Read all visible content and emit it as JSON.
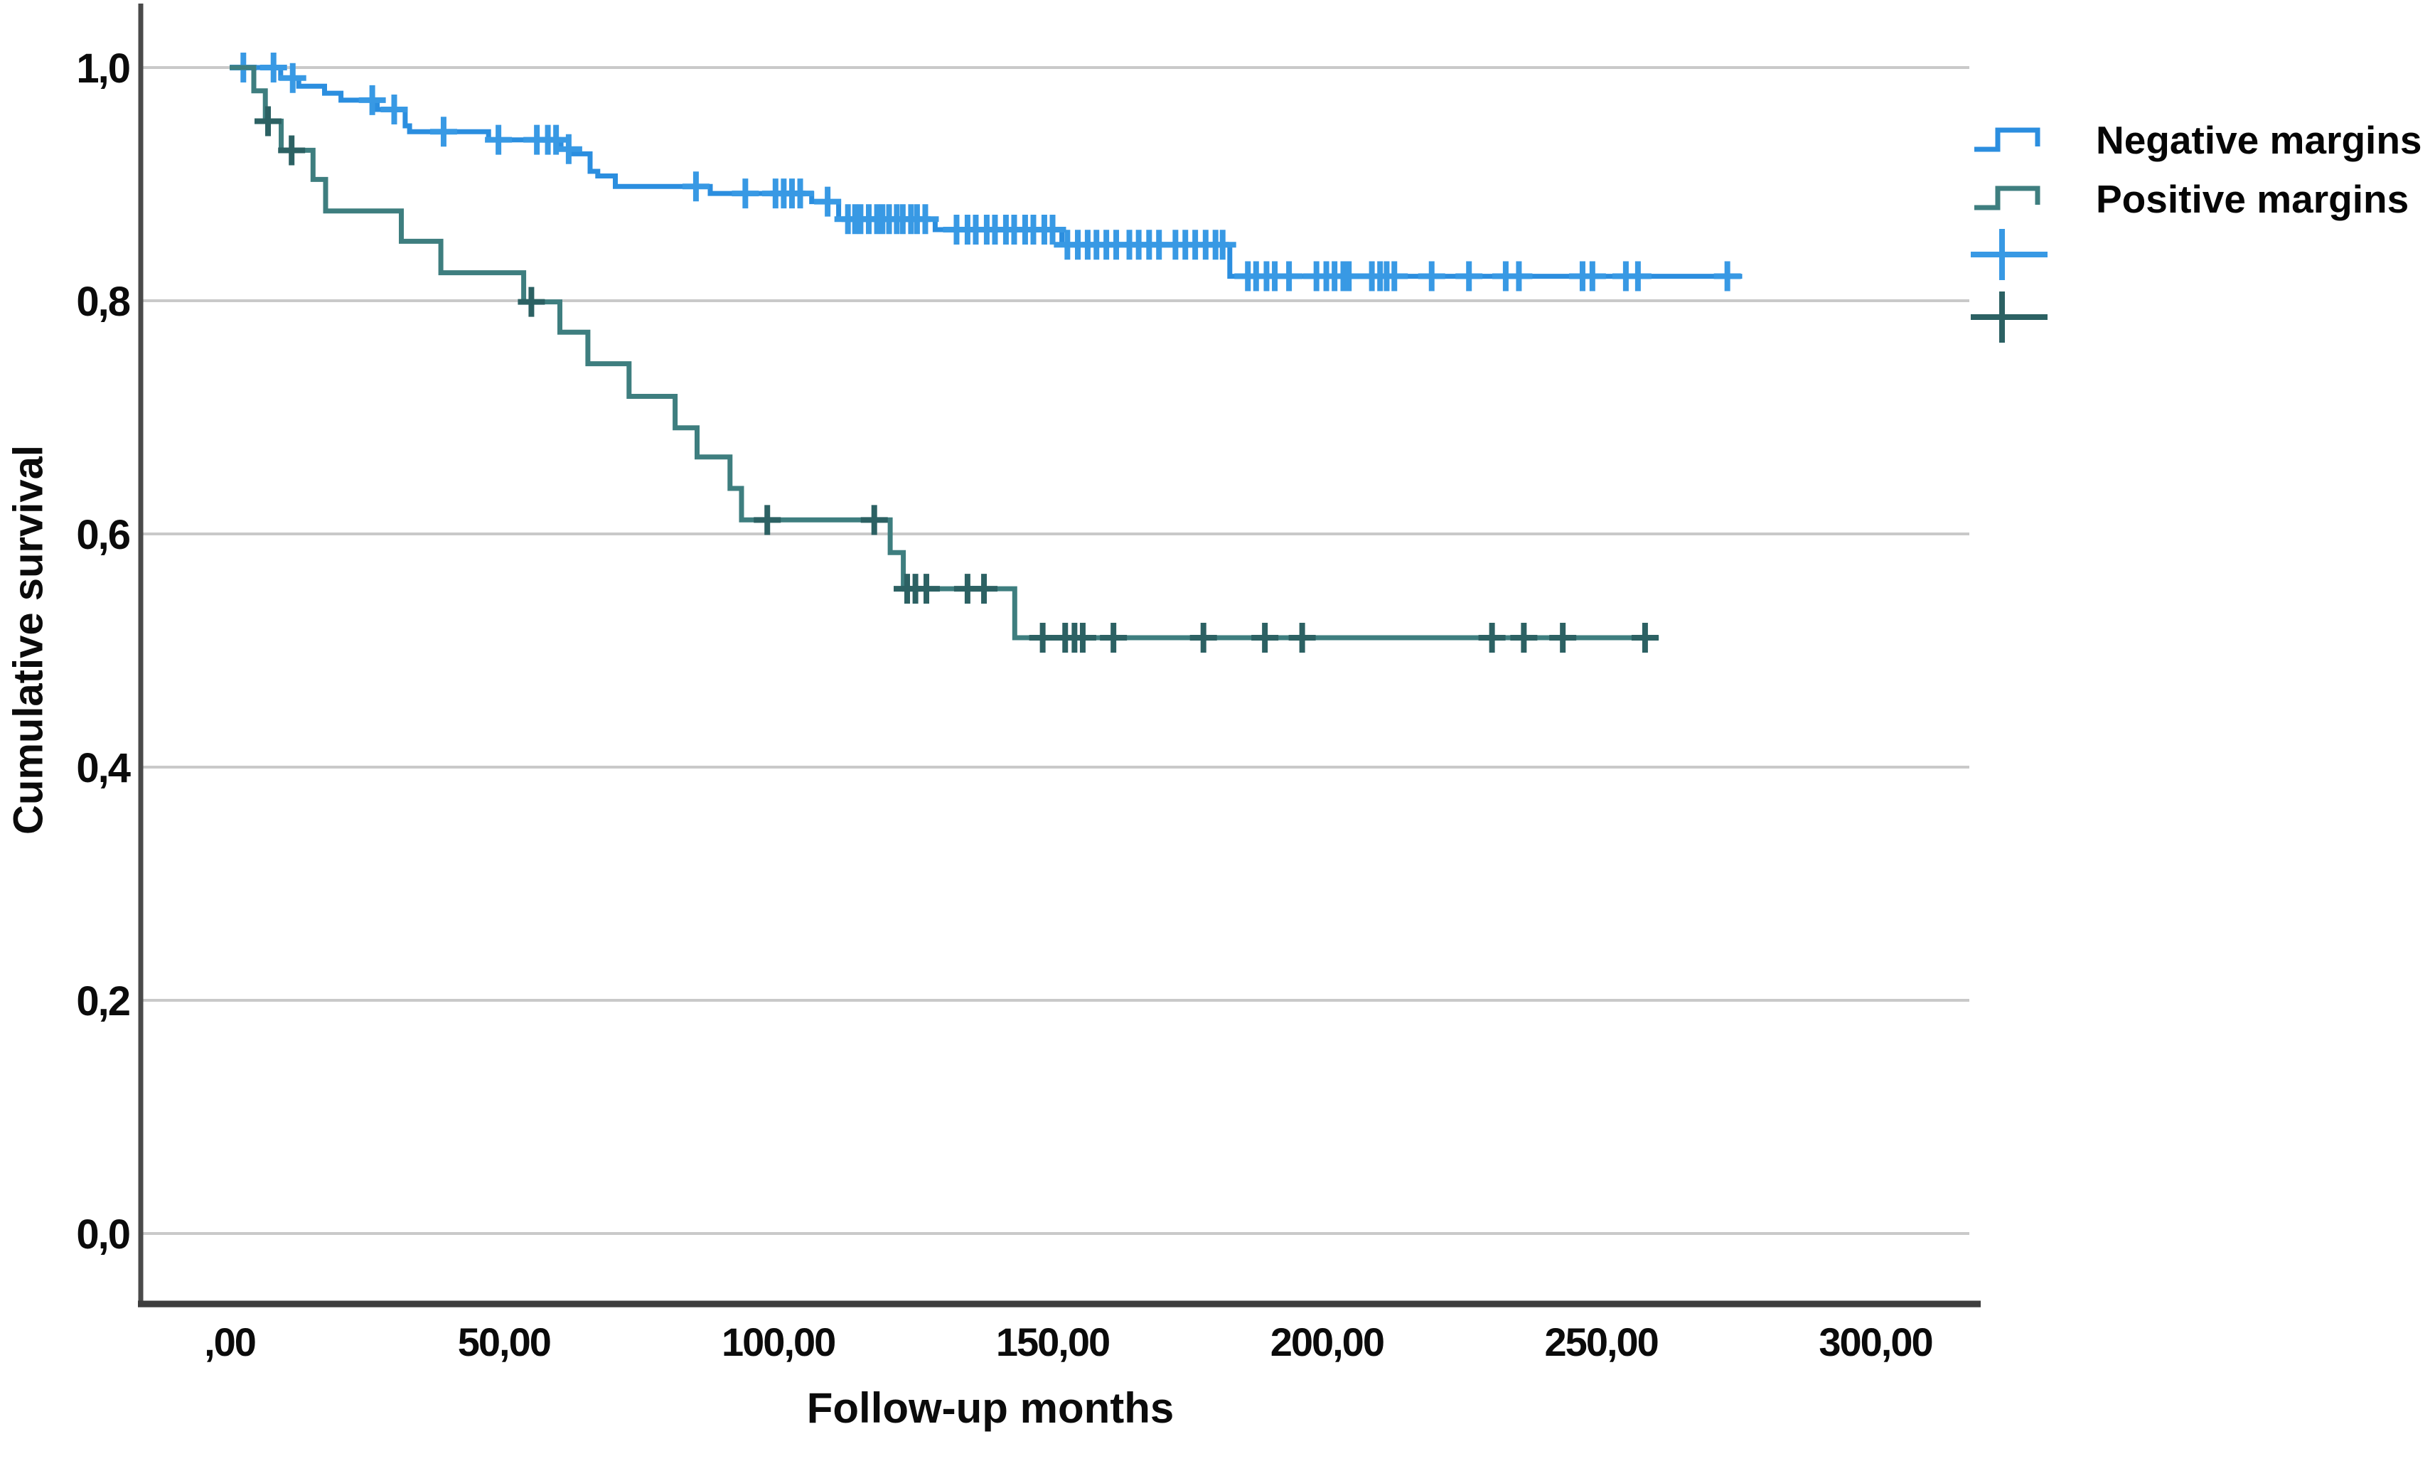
{
  "chart_data": {
    "type": "line",
    "variant": "kaplan_meier_step",
    "title": "",
    "xlabel": "Follow-up months",
    "ylabel": "Cumulative survival",
    "grid": "horizontal",
    "legend_position": "right",
    "x_axis": {
      "min": 0,
      "max": 318,
      "tick_values": [
        0,
        50,
        100,
        150,
        200,
        250,
        300
      ],
      "tick_labels": [
        ",00",
        "50,00",
        "100,00",
        "150,00",
        "200,00",
        "250,00",
        "300,00"
      ]
    },
    "y_axis": {
      "min": 0.0,
      "max": 1.05,
      "tick_values": [
        0.0,
        0.2,
        0.4,
        0.6,
        0.8,
        1.0
      ],
      "tick_labels": [
        "0,0",
        "0,2",
        "0,4",
        "0,6",
        "0,8",
        "1,0"
      ]
    },
    "series": [
      {
        "name": "Negative margins",
        "color": "#2B8EDF",
        "censor_color": "#3899E4",
        "steps": [
          [
            0,
            1.0
          ],
          [
            9.3,
            0.991
          ],
          [
            12.6,
            0.984
          ],
          [
            17.3,
            0.978
          ],
          [
            20.3,
            0.972
          ],
          [
            26.9,
            0.964
          ],
          [
            32.0,
            0.95
          ],
          [
            32.8,
            0.945
          ],
          [
            47.2,
            0.938
          ],
          [
            60.4,
            0.93
          ],
          [
            62.4,
            0.926
          ],
          [
            65.7,
            0.911
          ],
          [
            67.1,
            0.907
          ],
          [
            70.3,
            0.898
          ],
          [
            87.6,
            0.892
          ],
          [
            106.1,
            0.885
          ],
          [
            111.0,
            0.87
          ],
          [
            128.6,
            0.861
          ],
          [
            151.7,
            0.848
          ],
          [
            182.3,
            0.821
          ]
        ],
        "end_time": 275.7,
        "censor_times": [
          2.5,
          8,
          11.5,
          26,
          30,
          39,
          49,
          56,
          58,
          59.5,
          61.8,
          85,
          94,
          99.5,
          101,
          102.5,
          104,
          109,
          112.7,
          114,
          115,
          116.5,
          118,
          119,
          120.2,
          121.6,
          122.7,
          124.2,
          125.3,
          126.8,
          132.5,
          134.5,
          136,
          138,
          139.5,
          141.5,
          143,
          145,
          146.5,
          148.5,
          150,
          152.7,
          154.6,
          156.4,
          158,
          159.8,
          161.6,
          164,
          165.7,
          167.6,
          169.4,
          172.4,
          174.2,
          176,
          177.9,
          179.7,
          181,
          185.6,
          187.1,
          189,
          190.5,
          193.1,
          198.1,
          199.9,
          201.4,
          203,
          204,
          208.2,
          209.7,
          210.9,
          212.3,
          219.1,
          225.9,
          232.6,
          235,
          246.6,
          248.4,
          254.5,
          256.7,
          273
        ]
      },
      {
        "name": "Positive margins",
        "color": "#3E7E7F",
        "censor_color": "#2C6163",
        "steps": [
          [
            0,
            1.0
          ],
          [
            4.4,
            0.98
          ],
          [
            6.5,
            0.954
          ],
          [
            9.4,
            0.929
          ],
          [
            15.2,
            0.904
          ],
          [
            17.5,
            0.877
          ],
          [
            31.3,
            0.851
          ],
          [
            38.5,
            0.824
          ],
          [
            53.6,
            0.799
          ],
          [
            60.2,
            0.773
          ],
          [
            65.3,
            0.746
          ],
          [
            72.8,
            0.718
          ],
          [
            81.2,
            0.691
          ],
          [
            85.2,
            0.666
          ],
          [
            91.2,
            0.639
          ],
          [
            93.3,
            0.612
          ],
          [
            120.4,
            0.584
          ],
          [
            122.8,
            0.553
          ],
          [
            143.1,
            0.511
          ]
        ],
        "end_time": 260.5,
        "censor_times": [
          7,
          11.3,
          55,
          98,
          117.5,
          123.5,
          125,
          127,
          134.5,
          137.5,
          148.2,
          152.3,
          154,
          155.5,
          161.1,
          177.5,
          188.7,
          195.5,
          230.1,
          235.9,
          243,
          258
        ]
      }
    ],
    "style": {
      "grid_color": "#C9C9C9",
      "x_axis_line_color": "#3E3E3E",
      "x_axis_shadow_color": "#A9A9A9",
      "y_axis_line_color": "#4A4A4A",
      "text_color": "#0B0B0B",
      "background": "#FFFFFF"
    }
  }
}
